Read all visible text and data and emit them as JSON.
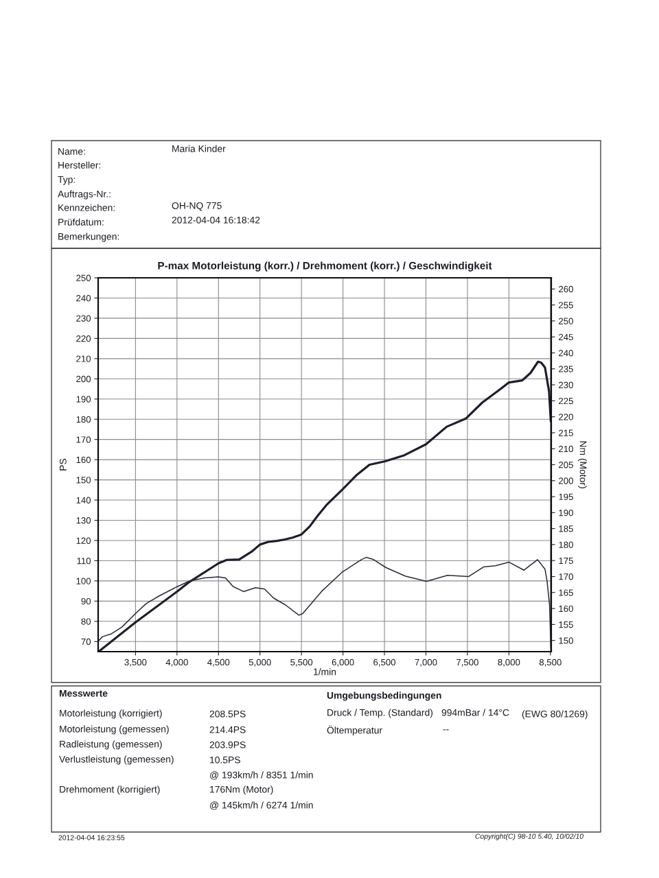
{
  "chart_data": {
    "type": "line",
    "title": "P-max Motorleistung (korr.) / Drehmoment (korr.) / Geschwindigkeit",
    "xlabel": "1/min",
    "ylabel": "PS",
    "y2label": "Nm (Motor)",
    "xlim": [
      3050,
      8510
    ],
    "ylim": [
      65,
      250
    ],
    "y2lim": [
      146.5,
      263.5
    ],
    "xticks": [
      {
        "value": 3500,
        "label": "3,500"
      },
      {
        "value": 4000,
        "label": "4,000"
      },
      {
        "value": 4500,
        "label": "4,500"
      },
      {
        "value": 5000,
        "label": "5,000"
      },
      {
        "value": 5500,
        "label": "5,500"
      },
      {
        "value": 6000,
        "label": "6,000"
      },
      {
        "value": 6500,
        "label": "6,500"
      },
      {
        "value": 7000,
        "label": "7,000"
      },
      {
        "value": 7500,
        "label": "7,500"
      },
      {
        "value": 8000,
        "label": "8,000"
      },
      {
        "value": 8500,
        "label": "8,500"
      }
    ],
    "yticks": [
      70,
      80,
      90,
      100,
      110,
      120,
      130,
      140,
      150,
      160,
      170,
      180,
      190,
      200,
      210,
      220,
      230,
      240,
      250
    ],
    "y2ticks": [
      150,
      155,
      160,
      165,
      170,
      175,
      180,
      185,
      190,
      195,
      200,
      205,
      210,
      215,
      220,
      225,
      230,
      235,
      240,
      245,
      250,
      255,
      260
    ],
    "grid": true,
    "series": [
      {
        "color": "#1e1e2c",
        "x": [
          3055,
          3500,
          4000,
          4150,
          4500,
          4600,
          4750,
          4900,
          5000,
          5100,
          5200,
          5300,
          5400,
          5500,
          5600,
          5700,
          5800,
          6000,
          6160,
          6320,
          6500,
          6740,
          7000,
          7250,
          7480,
          7680,
          7900,
          8000,
          8160,
          8260,
          8351,
          8390,
          8435,
          8484,
          8505
        ],
        "values": [
          65,
          79.5,
          94.7,
          99.5,
          108.7,
          110.4,
          110.6,
          114.5,
          118,
          119.3,
          119.8,
          120.5,
          121.5,
          123,
          127,
          132.5,
          137.5,
          145.5,
          152.2,
          157.5,
          159.1,
          162.2,
          167.6,
          176.3,
          180.3,
          188.3,
          195,
          198.2,
          199.2,
          202.9,
          208.5,
          208,
          205.6,
          193.7,
          179
        ]
      },
      {
        "axis": "y2",
        "color": "#2a2a38",
        "x": [
          3055,
          3102,
          3211,
          3337,
          3500,
          3627,
          3789,
          3999,
          4151,
          4332,
          4498,
          4585,
          4675,
          4802,
          4946,
          5055,
          5163,
          5308,
          5470,
          5515,
          5741,
          5987,
          6222,
          6280,
          6370,
          6519,
          6754,
          7007,
          7260,
          7513,
          7694,
          7839,
          8002,
          8182,
          8345,
          8435,
          8460,
          8490,
          8505
        ],
        "values": [
          149.9,
          151.2,
          152.1,
          154.2,
          158.4,
          161.5,
          164,
          166.8,
          168.6,
          169.6,
          169.9,
          169.6,
          166.9,
          165.3,
          166.5,
          166.1,
          163.3,
          161.1,
          157.9,
          158.4,
          165.3,
          171.3,
          175.3,
          176,
          175.3,
          172.8,
          170.1,
          168.5,
          170.4,
          170,
          173,
          173.4,
          174.5,
          172,
          175.3,
          172.3,
          168.6,
          161,
          148
        ]
      }
    ],
    "annotations": [
      "Name:",
      "Maria Kinder",
      "Hersteller:",
      "Typ:",
      "Auftrags-Nr.:",
      "Kennzeichen:",
      "OH-NQ 775",
      "Prüfdatum:",
      "2012-04-04 16:18:42",
      "Bemerkungen:",
      "Messwerte",
      "Motorleistung (korrigiert)",
      "208.5PS",
      "Motorleistung (gemessen)",
      "214.4PS",
      "Radleistung (gemessen)",
      "203.9PS",
      "Verlustleistung (gemessen)",
      "10.5PS",
      "@ 193km/h / 8351 1/min",
      "Drehmoment (korrigiert)",
      "176Nm (Motor)",
      "@ 145km/h / 6274 1/min",
      "Umgebungsbedingungen",
      "Druck / Temp. (Standard)",
      "994mBar / 14°C",
      "(EWG 80/1269)",
      "Öltemperatur",
      "--",
      "2012-04-04 16:23:55",
      "Copyright(C) 98-10 5.40, 10/02/10"
    ]
  }
}
